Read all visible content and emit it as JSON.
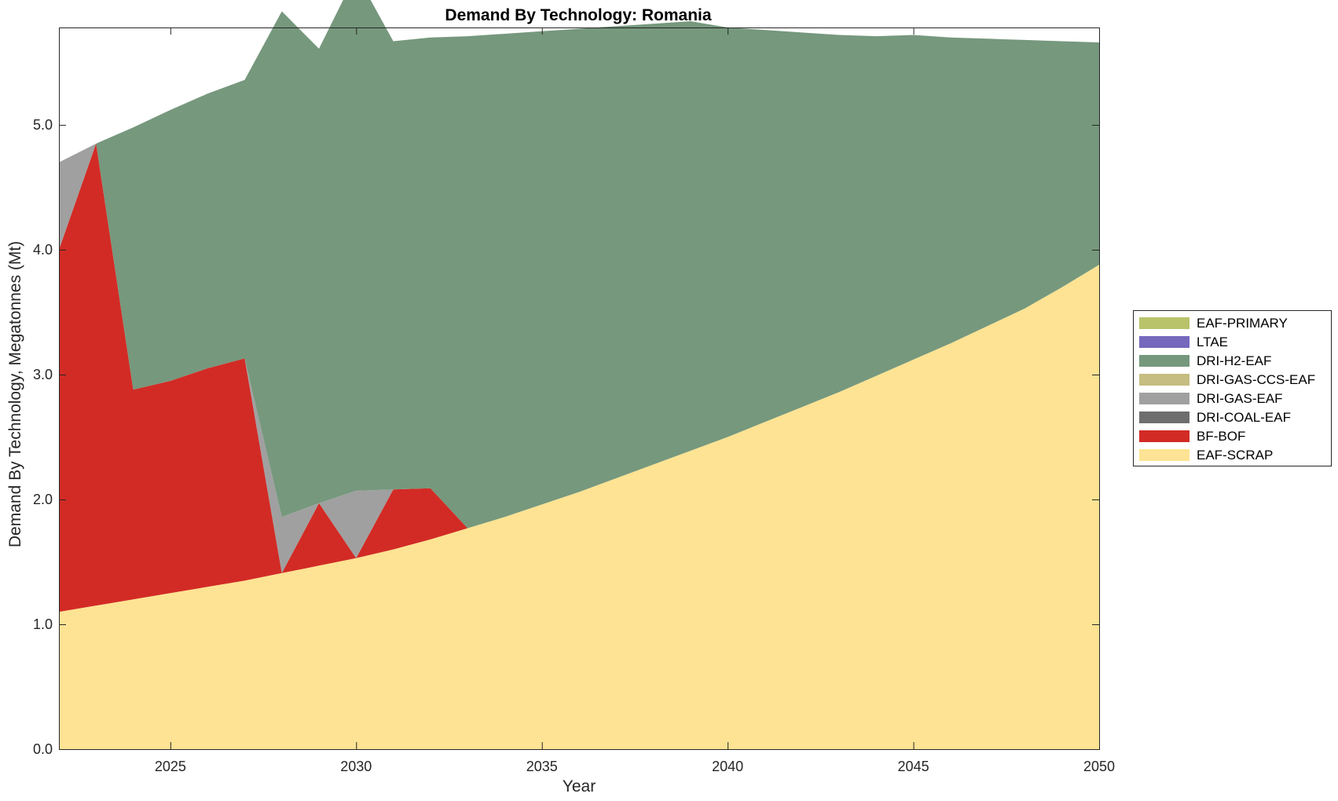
{
  "chart_data": {
    "type": "area",
    "stacked": true,
    "title": "Demand By Technology: Romania",
    "xlabel": "Year",
    "ylabel": "Demand By Technology, Megatonnes (Mt)",
    "xlim": [
      2022,
      2050
    ],
    "ylim": [
      0,
      5.78
    ],
    "xticks": [
      2025,
      2030,
      2035,
      2040,
      2045,
      2050
    ],
    "yticks": [
      "0.0",
      "1.0",
      "2.0",
      "3.0",
      "4.0",
      "5.0"
    ],
    "grid": false,
    "legend_position": "right",
    "x": [
      2022,
      2023,
      2024,
      2025,
      2026,
      2027,
      2028,
      2029,
      2030,
      2031,
      2032,
      2033,
      2034,
      2035,
      2036,
      2037,
      2038,
      2039,
      2040,
      2041,
      2042,
      2043,
      2044,
      2045,
      2046,
      2047,
      2048,
      2049,
      2050
    ],
    "series": [
      {
        "name": "EAF-SCRAP",
        "color": "#fde393",
        "values": [
          1.1,
          1.15,
          1.2,
          1.25,
          1.3,
          1.35,
          1.41,
          1.47,
          1.53,
          1.6,
          1.68,
          1.77,
          1.86,
          1.96,
          2.06,
          2.17,
          2.28,
          2.39,
          2.5,
          2.62,
          2.74,
          2.86,
          2.99,
          3.12,
          3.25,
          3.39,
          3.53,
          3.7,
          3.88
        ]
      },
      {
        "name": "BF-BOF",
        "color": "#d22b25",
        "values": [
          2.9,
          3.7,
          1.68,
          1.7,
          1.75,
          1.78,
          0,
          0.5,
          0,
          0.48,
          0.41,
          0,
          0,
          0,
          0,
          0,
          0,
          0,
          0,
          0,
          0,
          0,
          0,
          0,
          0,
          0,
          0,
          0,
          0
        ]
      },
      {
        "name": "DRI-COAL-EAF",
        "color": "#6e6e6e",
        "values": [
          0,
          0,
          0,
          0,
          0,
          0,
          0,
          0,
          0,
          0,
          0,
          0,
          0,
          0,
          0,
          0,
          0,
          0,
          0,
          0,
          0,
          0,
          0,
          0,
          0,
          0,
          0,
          0,
          0
        ]
      },
      {
        "name": "DRI-GAS-EAF",
        "color": "#a0a0a0",
        "values": [
          0.7,
          0,
          0,
          0,
          0,
          0,
          0.45,
          0,
          0.54,
          0,
          0,
          0,
          0,
          0,
          0,
          0,
          0,
          0,
          0,
          0,
          0,
          0,
          0,
          0,
          0,
          0,
          0,
          0,
          0
        ]
      },
      {
        "name": "DRI-GAS-CCS-EAF",
        "color": "#c6bd80",
        "values": [
          0,
          0,
          0,
          0,
          0,
          0,
          0,
          0,
          0,
          0,
          0,
          0,
          0,
          0,
          0,
          0,
          0,
          0,
          0,
          0,
          0,
          0,
          0,
          0,
          0,
          0,
          0,
          0,
          0
        ]
      },
      {
        "name": "DRI-H2-EAF",
        "color": "#76987d",
        "values": [
          0,
          0,
          2.1,
          2.17,
          2.2,
          2.23,
          4.05,
          3.64,
          4.14,
          3.59,
          3.61,
          3.94,
          3.87,
          3.79,
          3.71,
          3.62,
          3.53,
          3.44,
          3.28,
          3.14,
          3.0,
          2.86,
          2.72,
          2.6,
          2.45,
          2.3,
          2.15,
          1.97,
          1.78
        ]
      },
      {
        "name": "LTAE",
        "color": "#7568bd",
        "values": [
          0,
          0,
          0,
          0,
          0,
          0,
          0,
          0,
          0,
          0,
          0,
          0,
          0,
          0,
          0,
          0,
          0,
          0,
          0,
          0,
          0,
          0,
          0,
          0,
          0,
          0,
          0,
          0,
          0
        ]
      },
      {
        "name": "EAF-PRIMARY",
        "color": "#b8c36a",
        "values": [
          0,
          0,
          0,
          0,
          0,
          0,
          0,
          0,
          0,
          0,
          0,
          0,
          0,
          0,
          0,
          0,
          0,
          0,
          0,
          0,
          0,
          0,
          0,
          0,
          0,
          0,
          0,
          0,
          0
        ]
      }
    ],
    "legend_order": [
      "EAF-PRIMARY",
      "LTAE",
      "DRI-H2-EAF",
      "DRI-GAS-CCS-EAF",
      "DRI-GAS-EAF",
      "DRI-COAL-EAF",
      "BF-BOF",
      "EAF-SCRAP"
    ]
  }
}
